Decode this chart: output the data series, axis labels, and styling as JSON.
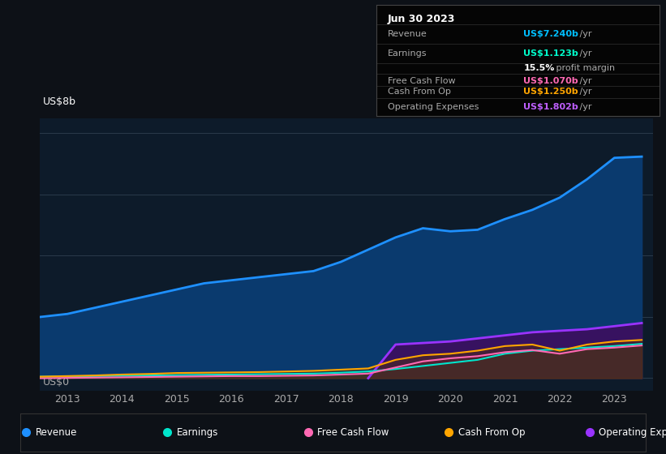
{
  "background_color": "#0d1117",
  "plot_bg_color": "#0d1b2a",
  "title_box": {
    "date": "Jun 30 2023",
    "rows": [
      {
        "label": "Revenue",
        "value_colored": "US$7.240b",
        "value_plain": " /yr",
        "value_color": "#00bfff"
      },
      {
        "label": "Earnings",
        "value_colored": "US$1.123b",
        "value_plain": " /yr",
        "value_color": "#00ffcc"
      },
      {
        "label": "",
        "value_colored": "15.5%",
        "value_plain": " profit margin",
        "value_color": "#ffffff"
      },
      {
        "label": "Free Cash Flow",
        "value_colored": "US$1.070b",
        "value_plain": " /yr",
        "value_color": "#ff69b4"
      },
      {
        "label": "Cash From Op",
        "value_colored": "US$1.250b",
        "value_plain": " /yr",
        "value_color": "#ffa500"
      },
      {
        "label": "Operating Expenses",
        "value_colored": "US$1.802b",
        "value_plain": " /yr",
        "value_color": "#bf5fff"
      }
    ]
  },
  "ylabel": "US$8b",
  "y0label": "US$0",
  "xmin": 2012.5,
  "xmax": 2023.7,
  "ymin": -0.4,
  "ymax": 8.5,
  "xticks": [
    2013,
    2014,
    2015,
    2016,
    2017,
    2018,
    2019,
    2020,
    2021,
    2022,
    2023
  ],
  "gridlines_y": [
    0,
    2,
    4,
    6,
    8
  ],
  "series": {
    "revenue": {
      "color": "#1e90ff",
      "fill_color": "#0a3a6e",
      "label": "Revenue",
      "x": [
        2012.5,
        2013.0,
        2013.5,
        2014.0,
        2014.5,
        2015.0,
        2015.5,
        2016.0,
        2016.5,
        2017.0,
        2017.5,
        2018.0,
        2018.5,
        2019.0,
        2019.5,
        2020.0,
        2020.5,
        2021.0,
        2021.5,
        2022.0,
        2022.5,
        2023.0,
        2023.5
      ],
      "y": [
        2.0,
        2.1,
        2.3,
        2.5,
        2.7,
        2.9,
        3.1,
        3.2,
        3.3,
        3.4,
        3.5,
        3.8,
        4.2,
        4.6,
        4.9,
        4.8,
        4.85,
        5.2,
        5.5,
        5.9,
        6.5,
        7.2,
        7.24
      ]
    },
    "earnings": {
      "color": "#00e5cc",
      "fill_color": "#004433",
      "label": "Earnings",
      "x": [
        2012.5,
        2013.0,
        2013.5,
        2014.0,
        2014.5,
        2015.0,
        2015.5,
        2016.0,
        2016.5,
        2017.0,
        2017.5,
        2018.0,
        2018.5,
        2019.0,
        2019.5,
        2020.0,
        2020.5,
        2021.0,
        2021.5,
        2022.0,
        2022.5,
        2023.0,
        2023.5
      ],
      "y": [
        0.05,
        0.06,
        0.07,
        0.08,
        0.09,
        0.1,
        0.11,
        0.12,
        0.13,
        0.14,
        0.15,
        0.18,
        0.22,
        0.3,
        0.4,
        0.5,
        0.6,
        0.8,
        0.9,
        0.95,
        1.0,
        1.05,
        1.123
      ]
    },
    "free_cash_flow": {
      "color": "#ff69b4",
      "fill_color": "#6b1a3a",
      "label": "Free Cash Flow",
      "x": [
        2012.5,
        2013.0,
        2013.5,
        2014.0,
        2014.5,
        2015.0,
        2015.5,
        2016.0,
        2016.5,
        2017.0,
        2017.5,
        2018.0,
        2018.5,
        2019.0,
        2019.5,
        2020.0,
        2020.5,
        2021.0,
        2021.5,
        2022.0,
        2022.5,
        2023.0,
        2023.5
      ],
      "y": [
        0.0,
        0.01,
        0.02,
        0.03,
        0.04,
        0.05,
        0.06,
        0.07,
        0.07,
        0.08,
        0.09,
        0.12,
        0.15,
        0.35,
        0.55,
        0.65,
        0.72,
        0.85,
        0.92,
        0.8,
        0.95,
        1.0,
        1.07
      ]
    },
    "cash_from_op": {
      "color": "#ffa500",
      "fill_color": "#5a3300",
      "label": "Cash From Op",
      "x": [
        2012.5,
        2013.0,
        2013.5,
        2014.0,
        2014.5,
        2015.0,
        2015.5,
        2016.0,
        2016.5,
        2017.0,
        2017.5,
        2018.0,
        2018.5,
        2019.0,
        2019.5,
        2020.0,
        2020.5,
        2021.0,
        2021.5,
        2022.0,
        2022.5,
        2023.0,
        2023.5
      ],
      "y": [
        0.05,
        0.07,
        0.09,
        0.12,
        0.14,
        0.17,
        0.18,
        0.19,
        0.2,
        0.22,
        0.24,
        0.28,
        0.32,
        0.6,
        0.75,
        0.8,
        0.9,
        1.05,
        1.1,
        0.9,
        1.1,
        1.2,
        1.25
      ]
    },
    "operating_expenses": {
      "color": "#9933ff",
      "fill_color": "#3a1060",
      "label": "Operating Expenses",
      "x": [
        2018.5,
        2019.0,
        2019.5,
        2020.0,
        2020.5,
        2021.0,
        2021.5,
        2022.0,
        2022.5,
        2023.0,
        2023.5
      ],
      "y": [
        0.0,
        1.1,
        1.15,
        1.2,
        1.3,
        1.4,
        1.5,
        1.55,
        1.6,
        1.7,
        1.802
      ]
    }
  },
  "legend_items": [
    {
      "label": "Revenue",
      "color": "#1e90ff"
    },
    {
      "label": "Earnings",
      "color": "#00e5cc"
    },
    {
      "label": "Free Cash Flow",
      "color": "#ff69b4"
    },
    {
      "label": "Cash From Op",
      "color": "#ffa500"
    },
    {
      "label": "Operating Expenses",
      "color": "#9933ff"
    }
  ]
}
